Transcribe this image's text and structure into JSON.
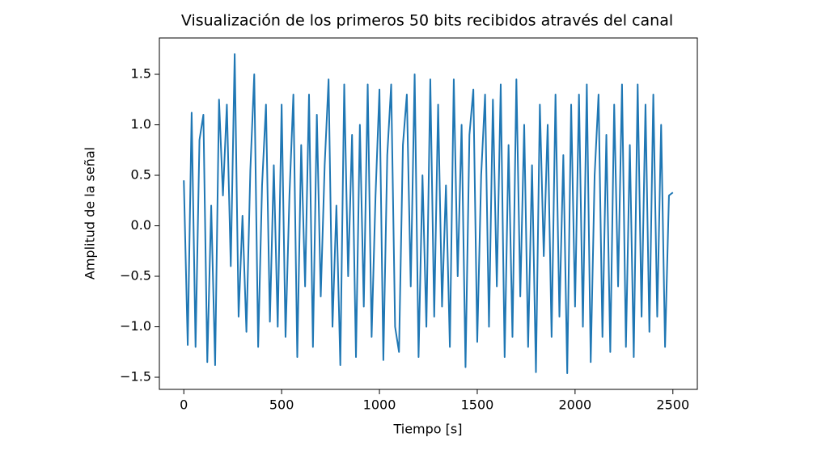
{
  "chart_data": {
    "type": "line",
    "title": "Visualización de los primeros 50 bits recibidos através del canal",
    "xlabel": "Tiempo [s]",
    "ylabel": "Amplitud de la señal",
    "color": "#1f77b4",
    "x": [
      0,
      20,
      40,
      60,
      80,
      100,
      120,
      140,
      160,
      180,
      200,
      220,
      240,
      260,
      280,
      300,
      320,
      340,
      360,
      380,
      400,
      420,
      440,
      460,
      480,
      500,
      520,
      540,
      560,
      580,
      600,
      620,
      640,
      660,
      680,
      700,
      720,
      740,
      760,
      780,
      800,
      820,
      840,
      860,
      880,
      900,
      920,
      940,
      960,
      980,
      1000,
      1020,
      1040,
      1060,
      1080,
      1100,
      1120,
      1140,
      1160,
      1180,
      1200,
      1220,
      1240,
      1260,
      1280,
      1300,
      1320,
      1340,
      1360,
      1380,
      1400,
      1420,
      1440,
      1460,
      1480,
      1500,
      1520,
      1540,
      1560,
      1580,
      1600,
      1620,
      1640,
      1660,
      1680,
      1700,
      1720,
      1740,
      1760,
      1780,
      1800,
      1820,
      1840,
      1860,
      1880,
      1900,
      1920,
      1940,
      1960,
      1980,
      2000,
      2020,
      2040,
      2060,
      2080,
      2100,
      2120,
      2140,
      2160,
      2180,
      2200,
      2220,
      2240,
      2260,
      2280,
      2300,
      2320,
      2340,
      2360,
      2380,
      2400,
      2420,
      2440,
      2460,
      2480,
      2500
    ],
    "values": [
      0.45,
      -1.18,
      1.12,
      -1.2,
      0.85,
      1.1,
      -1.35,
      0.2,
      -1.38,
      1.25,
      0.3,
      1.2,
      -0.4,
      1.7,
      -0.9,
      0.1,
      -1.05,
      0.55,
      1.5,
      -1.2,
      0.4,
      1.2,
      -0.95,
      0.6,
      -1.0,
      1.2,
      -1.1,
      0.3,
      1.3,
      -1.3,
      0.8,
      -0.6,
      1.3,
      -1.2,
      1.1,
      -0.7,
      0.6,
      1.45,
      -1.0,
      0.2,
      -1.38,
      1.4,
      -0.5,
      0.9,
      -1.3,
      1.0,
      -0.8,
      1.4,
      -1.1,
      0.3,
      1.35,
      -1.33,
      0.7,
      1.4,
      -1.0,
      -1.25,
      0.8,
      1.3,
      -0.6,
      1.5,
      -1.3,
      0.5,
      -1.0,
      1.45,
      -0.9,
      1.2,
      -0.8,
      0.4,
      -1.2,
      1.45,
      -0.5,
      1.0,
      -1.4,
      0.9,
      1.35,
      -1.15,
      0.5,
      1.3,
      -1.0,
      1.25,
      -0.6,
      1.4,
      -1.3,
      0.8,
      -1.1,
      1.45,
      -0.7,
      1.0,
      -1.2,
      0.6,
      -1.45,
      1.2,
      -0.3,
      1.0,
      -1.1,
      1.3,
      -0.9,
      0.7,
      -1.46,
      1.2,
      -0.8,
      1.3,
      -1.0,
      1.4,
      -1.35,
      0.5,
      1.3,
      -1.1,
      0.9,
      -1.25,
      1.2,
      -0.6,
      1.4,
      -1.2,
      0.8,
      -1.3,
      1.4,
      -0.9,
      1.2,
      -1.05,
      1.3,
      -0.9,
      1.0,
      -1.2,
      0.3,
      0.33
    ],
    "xlim": [
      -125,
      2625
    ],
    "ylim": [
      -1.62,
      1.86
    ],
    "xticks": [
      0,
      500,
      1000,
      1500,
      2000,
      2500
    ],
    "yticks": [
      {
        "value": -1.5,
        "label": "−1.5"
      },
      {
        "value": -1.0,
        "label": "−1.0"
      },
      {
        "value": -0.5,
        "label": "−0.5"
      },
      {
        "value": 0,
        "label": "0.0"
      },
      {
        "value": 0.5,
        "label": "0.5"
      },
      {
        "value": 1.0,
        "label": "1.0"
      },
      {
        "value": 1.5,
        "label": "1.5"
      }
    ],
    "grid": false
  }
}
